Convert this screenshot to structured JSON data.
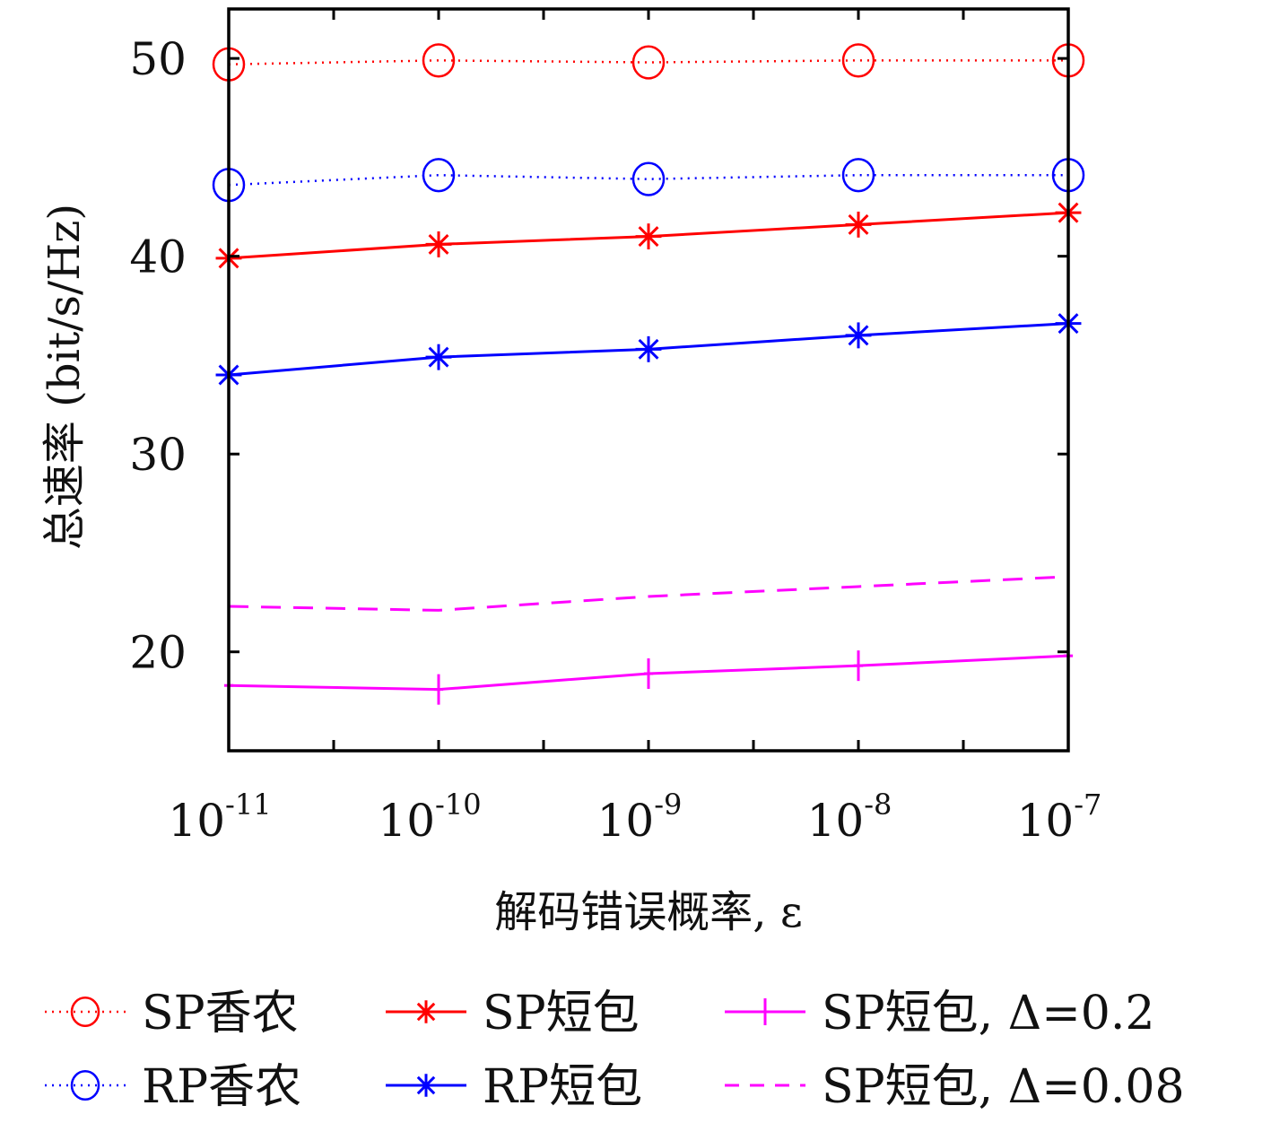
{
  "chart_data": {
    "type": "line",
    "xlabel": "解码错误概率, ε",
    "ylabel": "总速率 (bit/s/Hz)",
    "x": [
      1e-11,
      1e-10,
      1e-09,
      1e-08,
      1e-07
    ],
    "x_scale": "log",
    "x_tick_labels": [
      {
        "base": "10",
        "exp": "-11"
      },
      {
        "base": "10",
        "exp": "-10"
      },
      {
        "base": "10",
        "exp": "-9"
      },
      {
        "base": "10",
        "exp": "-8"
      },
      {
        "base": "10",
        "exp": "-7"
      }
    ],
    "y_ticks": [
      20,
      30,
      40,
      50
    ],
    "ylim": [
      15,
      52.5
    ],
    "grid": false,
    "legend_position": "bottom",
    "series": [
      {
        "name": "SP香农",
        "values": [
          49.7,
          49.9,
          49.8,
          49.9,
          49.9
        ],
        "color": "#ff0000",
        "line": "dotted",
        "marker": "circle"
      },
      {
        "name": "RP香农",
        "values": [
          43.6,
          44.1,
          43.9,
          44.1,
          44.1
        ],
        "color": "#0000ff",
        "line": "dotted",
        "marker": "circle"
      },
      {
        "name": "SP短包",
        "values": [
          39.9,
          40.6,
          41.0,
          41.6,
          42.2
        ],
        "color": "#ff0000",
        "line": "solid",
        "marker": "asterisk"
      },
      {
        "name": "RP短包",
        "values": [
          34.0,
          34.9,
          35.3,
          36.0,
          36.6
        ],
        "color": "#0000ff",
        "line": "solid",
        "marker": "asterisk"
      },
      {
        "name": "SP短包, Δ=0.2",
        "values": [
          18.3,
          18.1,
          18.9,
          19.3,
          19.8
        ],
        "color": "#ff00ff",
        "line": "solid",
        "marker": "plus"
      },
      {
        "name": "SP短包, Δ=0.08",
        "values": [
          22.3,
          22.1,
          22.8,
          23.3,
          23.8
        ],
        "color": "#ff00ff",
        "line": "dashed",
        "marker": "none"
      }
    ],
    "legend_order": [
      0,
      2,
      4,
      1,
      3,
      5
    ]
  }
}
